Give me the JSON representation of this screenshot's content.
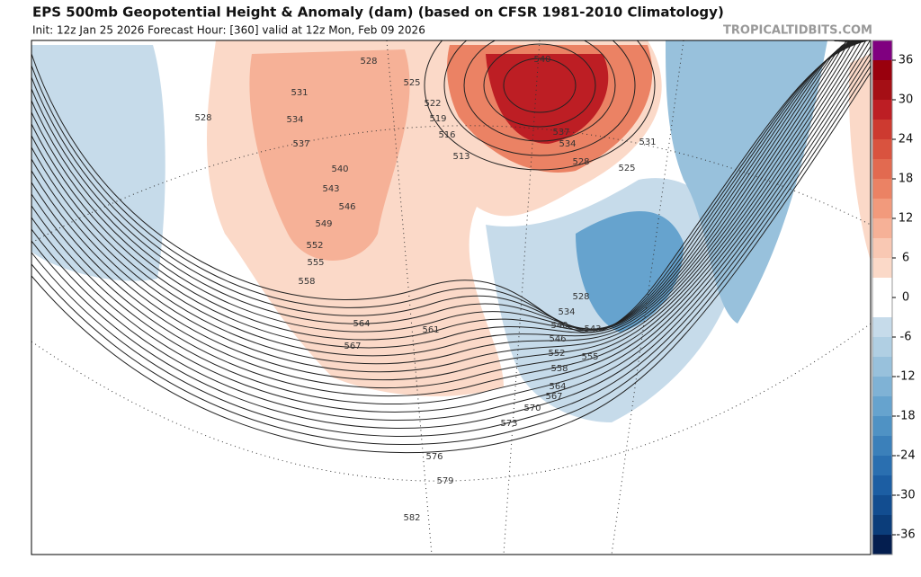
{
  "header": {
    "title": "EPS 500mb Geopotential Height & Anomaly (dam) (based on CFSR 1981-2010 Climatology)",
    "subtitle": "Init: 12z Jan 25 2026   Forecast Hour: [360]   valid at 12z Mon, Feb 09 2026",
    "source": "TROPICALTIDBITS.COM"
  },
  "contour_labels": [
    528,
    531,
    534,
    537,
    540,
    543,
    546,
    549,
    552,
    555,
    558,
    564,
    567,
    561,
    528,
    525,
    522,
    519,
    516,
    513,
    540,
    537,
    534,
    531,
    528,
    525,
    528,
    534,
    540,
    543,
    546,
    552,
    555,
    558,
    564,
    567,
    570,
    573,
    576,
    579,
    582
  ],
  "colorbar": {
    "range": [
      -39,
      39
    ],
    "ticks": [
      36,
      30,
      24,
      18,
      12,
      6,
      0,
      -6,
      -12,
      -18,
      -24,
      -30,
      -36
    ],
    "colors": [
      "#800080",
      "#99000d",
      "#a50f15",
      "#bd1e24",
      "#cd3a30",
      "#d9533f",
      "#e26a50",
      "#eb8264",
      "#f29a7c",
      "#f6b197",
      "#f9c8b3",
      "#fbd9c8",
      "#ffffff",
      "#ffffff",
      "#c6dbea",
      "#b0cfe3",
      "#98c1dc",
      "#7fb2d5",
      "#66a3ce",
      "#4f92c4",
      "#3b80ba",
      "#2a6fb0",
      "#1c5ea3",
      "#124d90",
      "#0b3d7a",
      "#041e4f"
    ]
  }
}
